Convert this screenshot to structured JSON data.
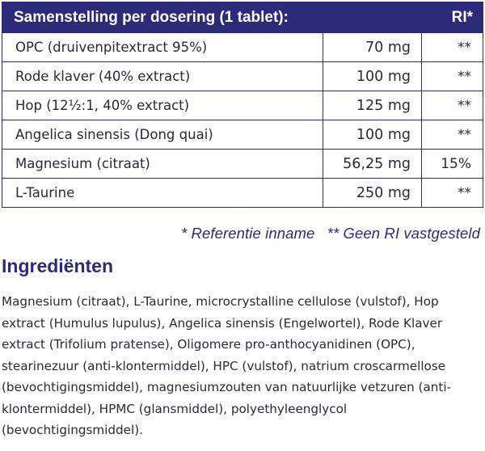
{
  "table": {
    "header": {
      "name": "Samenstelling per dosering (1 tablet):",
      "ri": "RI*"
    },
    "rows": [
      {
        "name": "OPC (druivenpitextract 95%)",
        "amount": "70 mg",
        "ri": "**"
      },
      {
        "name": "Rode klaver (40% extract)",
        "amount": "100 mg",
        "ri": "**"
      },
      {
        "name": "Hop (12½:1, 40% extract)",
        "amount": "125 mg",
        "ri": "**"
      },
      {
        "name": "Angelica sinensis (Dong quai)",
        "amount": "100 mg",
        "ri": "**"
      },
      {
        "name": "Magnesium (citraat)",
        "amount": "56,25 mg",
        "ri": "15%"
      },
      {
        "name": "L-Taurine",
        "amount": "250 mg",
        "ri": "**"
      }
    ]
  },
  "footnote": {
    "reference": "* Referentie inname",
    "no_ri": "** Geen RI vastgesteld"
  },
  "ingredients": {
    "title": "Ingrediënten",
    "text": "Magnesium (citraat), L-Taurine, microcrystalline cellulose (vulstof), Hop extract (Humulus lupulus), Angelica sinensis (Engelwortel), Rode Klaver extract (Trifolium pratense), Oligomere pro-anthocyanidinen (OPC), stearinezuur (anti-klontermiddel), HPC (vulstof), natrium croscarmellose (bevochtigingsmiddel), magnesiumzouten van natuurlijke vetzuren (anti-klontermiddel), HPMC (glansmiddel), polyethyleenglycol (bevochtigingsmiddel)."
  },
  "colors": {
    "brand": "#2e2a7a",
    "text": "#2a2a35"
  }
}
